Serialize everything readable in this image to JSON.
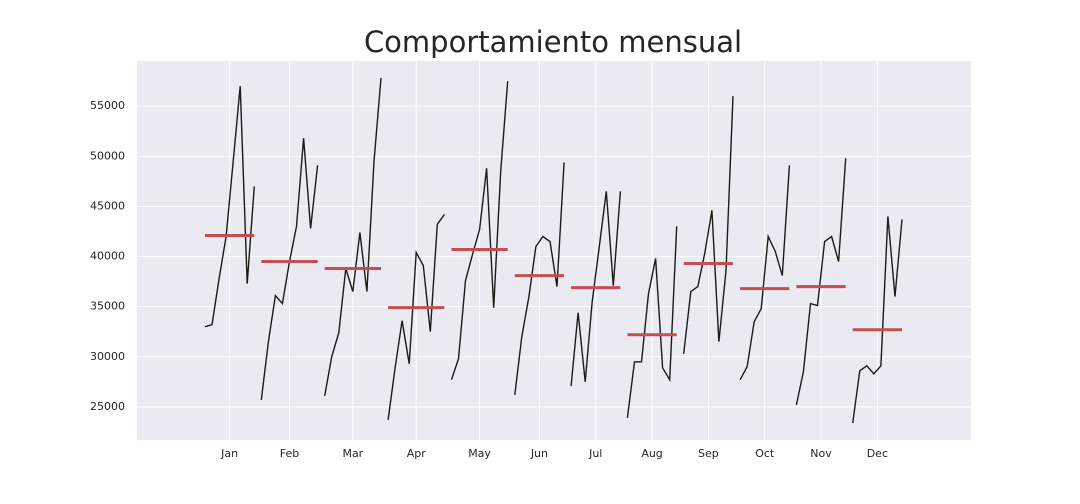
{
  "chart_data": {
    "type": "month_plot",
    "title": "Comportamiento mensual",
    "categories": [
      "Jan",
      "Feb",
      "Mar",
      "Apr",
      "May",
      "Jun",
      "Jul",
      "Aug",
      "Sep",
      "Oct",
      "Nov",
      "Dec"
    ],
    "values": [
      [
        33000,
        33200,
        37800,
        42000,
        49500,
        57000,
        37300,
        47000
      ],
      [
        25700,
        31500,
        36100,
        35300,
        39500,
        43000,
        51800,
        42800,
        49100
      ],
      [
        26100,
        30000,
        32400,
        38800,
        36500,
        42400,
        36500,
        49500,
        57800
      ],
      [
        23700,
        28900,
        33600,
        29300,
        40400,
        39100,
        32500,
        43200,
        44200
      ],
      [
        27700,
        29800,
        37600,
        40200,
        42700,
        48800,
        34900,
        48500,
        57500
      ],
      [
        26200,
        32000,
        36000,
        41000,
        42000,
        41500,
        37000,
        49400
      ],
      [
        27100,
        34400,
        27500,
        35500,
        41000,
        46500,
        37100,
        46500
      ],
      [
        23900,
        29500,
        29500,
        36300,
        39800,
        28900,
        27700,
        43000
      ],
      [
        30300,
        36500,
        37000,
        40400,
        44600,
        31500,
        38600,
        56000
      ],
      [
        27700,
        29000,
        33500,
        34800,
        42000,
        40500,
        38100,
        49100
      ],
      [
        25200,
        28500,
        35300,
        35100,
        41500,
        42000,
        39500,
        49800
      ],
      [
        23400,
        28600,
        29100,
        28300,
        29100,
        44000,
        36000,
        43700
      ]
    ],
    "means": [
      42100,
      39500,
      38800,
      34900,
      40700,
      38100,
      36900,
      32200,
      39300,
      36800,
      37000,
      32700
    ],
    "line_color": "#1a1a1a",
    "mean_color": "#c44e52",
    "ylim": [
      21700,
      59500
    ],
    "yticks": [
      25000,
      30000,
      35000,
      40000,
      45000,
      50000,
      55000
    ],
    "grid": true
  }
}
